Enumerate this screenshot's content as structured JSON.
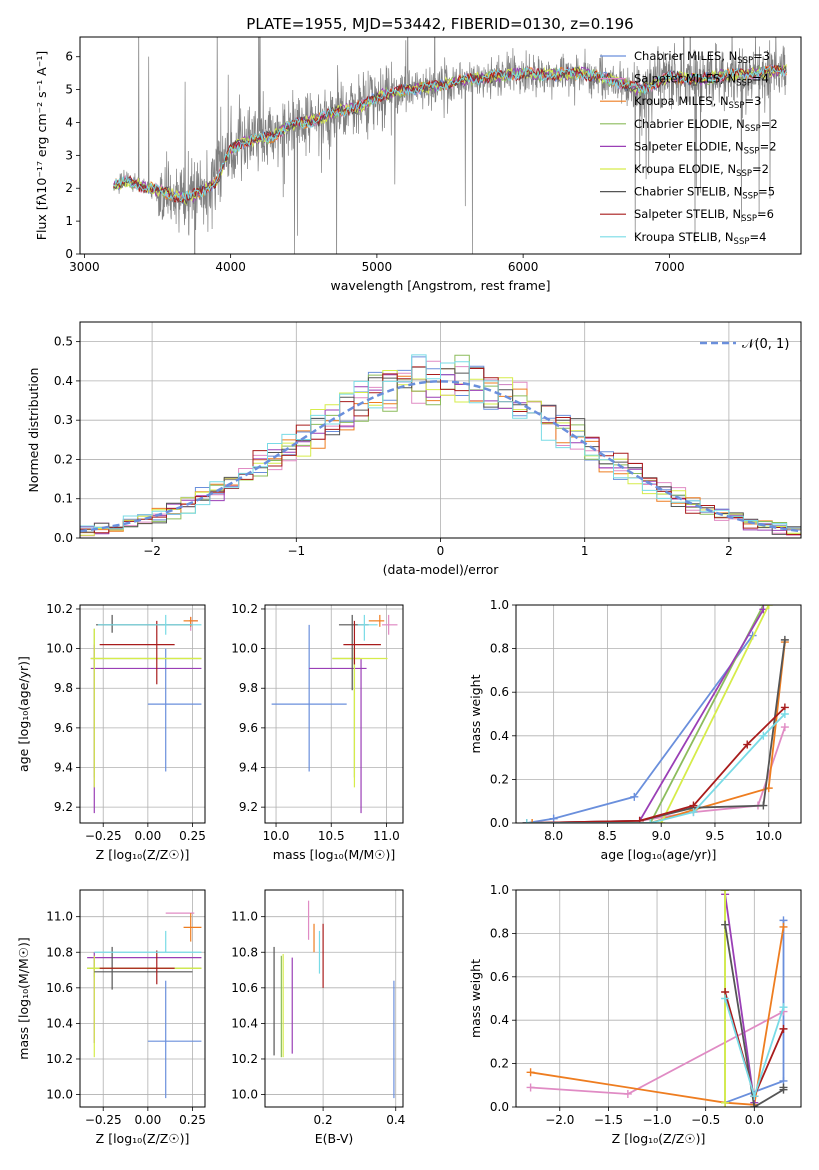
{
  "figure_title": "PLATE=1955, MJD=53442, FIBERID=0130, z=0.196",
  "colors": {
    "Chabrier MILES": "#6a8fdc",
    "Salpeter MILES": "#e08bc4",
    "Kroupa MILES": "#ee7d20",
    "Chabrier ELODIE": "#8cbc5c",
    "Salpeter ELODIE": "#9a3fb6",
    "Kroupa ELODIE": "#d6ec4a",
    "Chabrier STELIB": "#555555",
    "Salpeter STELIB": "#a81c1c",
    "Kroupa STELIB": "#78dbe6"
  },
  "chart_data": [
    {
      "id": "spectrum",
      "type": "line",
      "xlabel": "wavelength [Angstrom, rest frame]",
      "ylabel": "Flux [fλ10⁻¹⁷ erg cm⁻² s⁻¹ A⁻¹]",
      "xlim": [
        2970,
        7900
      ],
      "ylim": [
        0,
        6.6
      ],
      "xticks": [
        3000,
        4000,
        5000,
        6000,
        7000
      ],
      "yticks": [
        0,
        1,
        2,
        3,
        4,
        5,
        6
      ],
      "grid": false,
      "legend_position": "right",
      "data_color": "#808080",
      "continuum": {
        "x": [
          3200,
          3300,
          3400,
          3500,
          3600,
          3700,
          3800,
          3900,
          4000,
          4100,
          4200,
          4300,
          4400,
          4500,
          4600,
          4700,
          4800,
          4900,
          5000,
          5200,
          5400,
          5600,
          5800,
          6000,
          6200,
          6400,
          6600,
          6800,
          7000,
          7200,
          7400,
          7600,
          7800
        ],
        "y": [
          2.1,
          2.2,
          2.05,
          1.95,
          1.8,
          1.7,
          1.9,
          2.2,
          3.2,
          3.4,
          3.5,
          3.6,
          3.9,
          4.0,
          4.1,
          4.3,
          4.4,
          4.5,
          4.8,
          5.0,
          5.1,
          5.3,
          5.4,
          5.5,
          5.45,
          5.5,
          5.3,
          5.0,
          5.4,
          5.3,
          5.45,
          5.5,
          5.6
        ]
      },
      "legend": [
        {
          "name": "Chabrier MILES",
          "ssp": "3"
        },
        {
          "name": "Salpeter MILES",
          "ssp": "4"
        },
        {
          "name": "Kroupa MILES",
          "ssp": "3"
        },
        {
          "name": "Chabrier ELODIE",
          "ssp": "2"
        },
        {
          "name": "Salpeter ELODIE",
          "ssp": "2"
        },
        {
          "name": "Kroupa ELODIE",
          "ssp": "2"
        },
        {
          "name": "Chabrier STELIB",
          "ssp": "5"
        },
        {
          "name": "Salpeter STELIB",
          "ssp": "6"
        },
        {
          "name": "Kroupa STELIB",
          "ssp": "4"
        }
      ]
    },
    {
      "id": "residuals",
      "type": "histogram",
      "xlabel": "(data-model)/error",
      "ylabel": "Normed distribution",
      "xlim": [
        -2.5,
        2.5
      ],
      "ylim": [
        0,
        0.55
      ],
      "xticks": [
        -2,
        -1,
        0,
        1,
        2
      ],
      "yticks": [
        0,
        0.1,
        0.2,
        0.3,
        0.4,
        0.5
      ],
      "grid": true,
      "legend_position": "top-right",
      "gaussian_label": "𝒩(0, 1)",
      "bin_width": 0.1,
      "gaussian_color": "#6a8fdc"
    },
    {
      "id": "age_vs_Z",
      "type": "scatter",
      "xlabel": "Z [log₁₀(Z/Z☉)]",
      "ylabel": "age  [log₁₀(age/yr)]",
      "xlim": [
        -0.38,
        0.32
      ],
      "ylim": [
        9.12,
        10.22
      ],
      "xticks": [
        -0.25,
        0,
        0.25
      ],
      "xticklabels": [
        "−0.25",
        "0.00",
        "0.25"
      ],
      "yticks": [
        9.2,
        9.4,
        9.6,
        9.8,
        10.0,
        10.2
      ],
      "grid": true,
      "points": [
        {
          "name": "Chabrier MILES",
          "x": 0.1,
          "xerr_lo": 0.1,
          "xerr_hi": 0.2,
          "y": 9.72,
          "yerr_lo": 0.34,
          "yerr_hi": 0.28
        },
        {
          "name": "Salpeter MILES",
          "x": 0.24,
          "xerr_lo": 0.01,
          "xerr_hi": 0.04,
          "y": 10.14,
          "yerr_lo": 0.05,
          "yerr_hi": 0.02
        },
        {
          "name": "Kroupa MILES",
          "x": 0.24,
          "xerr_lo": 0.04,
          "xerr_hi": 0.04,
          "y": 10.14,
          "yerr_lo": 0.03,
          "yerr_hi": 0.02
        },
        {
          "name": "Chabrier ELODIE",
          "x": -0.3,
          "xerr_lo": 0.02,
          "xerr_hi": 0.6,
          "y": 9.95,
          "yerr_lo": 0.6,
          "yerr_hi": 0.15
        },
        {
          "name": "Salpeter ELODIE",
          "x": -0.3,
          "xerr_lo": 0.02,
          "xerr_hi": 0.6,
          "y": 9.9,
          "yerr_lo": 0.73,
          "yerr_hi": 0.12
        },
        {
          "name": "Kroupa ELODIE",
          "x": -0.3,
          "xerr_lo": 0.02,
          "xerr_hi": 0.6,
          "y": 9.95,
          "yerr_lo": 0.65,
          "yerr_hi": 0.15
        },
        {
          "name": "Chabrier STELIB",
          "x": -0.2,
          "xerr_lo": 0.09,
          "xerr_hi": 0.45,
          "y": 10.12,
          "yerr_lo": 0.04,
          "yerr_hi": 0.05
        },
        {
          "name": "Salpeter STELIB",
          "x": 0.05,
          "xerr_lo": 0.32,
          "xerr_hi": 0.1,
          "y": 10.02,
          "yerr_lo": 0.2,
          "yerr_hi": 0.12
        },
        {
          "name": "Kroupa STELIB",
          "x": 0.1,
          "xerr_lo": 0.38,
          "xerr_hi": 0.2,
          "y": 10.12,
          "yerr_lo": 0.05,
          "yerr_hi": 0.05
        }
      ]
    },
    {
      "id": "age_vs_mass",
      "type": "scatter",
      "xlabel": "mass [log₁₀(M/M☉)]",
      "ylabel": "",
      "xlim": [
        9.9,
        11.15
      ],
      "ylim": [
        9.12,
        10.22
      ],
      "xticks": [
        10.0,
        10.5,
        11.0
      ],
      "yticks": [
        9.2,
        9.4,
        9.6,
        9.8,
        10.0,
        10.2
      ],
      "grid": true,
      "points": [
        {
          "name": "Chabrier MILES",
          "x": 10.3,
          "xerr_lo": 0.34,
          "xerr_hi": 0.34,
          "y": 9.72,
          "yerr_lo": 0.34,
          "yerr_hi": 0.4
        },
        {
          "name": "Salpeter MILES",
          "x": 11.02,
          "xerr_lo": 0.06,
          "xerr_hi": 0.08,
          "y": 10.12,
          "yerr_lo": 0.05,
          "yerr_hi": 0.05
        },
        {
          "name": "Kroupa MILES",
          "x": 10.94,
          "xerr_lo": 0.1,
          "xerr_hi": 0.04,
          "y": 10.14,
          "yerr_lo": 0.03,
          "yerr_hi": 0.03
        },
        {
          "name": "Chabrier ELODIE",
          "x": 10.71,
          "xerr_lo": 0.2,
          "xerr_hi": 0.05,
          "y": 9.95,
          "yerr_lo": 0.6,
          "yerr_hi": 0.05
        },
        {
          "name": "Salpeter ELODIE",
          "x": 10.77,
          "xerr_lo": 0.47,
          "xerr_hi": 0.05,
          "y": 9.9,
          "yerr_lo": 0.73,
          "yerr_hi": 0.05
        },
        {
          "name": "Kroupa ELODIE",
          "x": 10.71,
          "xerr_lo": 0.2,
          "xerr_hi": 0.3,
          "y": 9.95,
          "yerr_lo": 0.65,
          "yerr_hi": 0.05
        },
        {
          "name": "Chabrier STELIB",
          "x": 10.69,
          "xerr_lo": 0.12,
          "xerr_hi": 0.15,
          "y": 10.12,
          "yerr_lo": 0.33,
          "yerr_hi": 0.05
        },
        {
          "name": "Salpeter STELIB",
          "x": 10.71,
          "xerr_lo": 0.1,
          "xerr_hi": 0.24,
          "y": 10.02,
          "yerr_lo": 0.1,
          "yerr_hi": 0.12
        },
        {
          "name": "Kroupa STELIB",
          "x": 10.8,
          "xerr_lo": 0.06,
          "xerr_hi": 0.12,
          "y": 10.12,
          "yerr_lo": 0.08,
          "yerr_hi": 0.05
        }
      ]
    },
    {
      "id": "massweight_vs_age",
      "type": "line",
      "xlabel": "age  [log₁₀(age/yr)]",
      "ylabel": "mass weight",
      "xlim": [
        7.65,
        10.3
      ],
      "ylim": [
        0,
        1.0
      ],
      "xticks": [
        8.0,
        8.5,
        9.0,
        9.5,
        10.0
      ],
      "yticks": [
        0,
        0.2,
        0.4,
        0.6,
        0.8,
        1.0
      ],
      "grid": true,
      "series": [
        {
          "name": "Chabrier MILES",
          "x": [
            7.75,
            8.0,
            8.75,
            9.85
          ],
          "y": [
            0.0,
            0.02,
            0.12,
            0.86
          ]
        },
        {
          "name": "Salpeter MILES",
          "x": [
            7.75,
            8.8,
            9.3,
            9.9,
            10.15
          ],
          "y": [
            0.0,
            0.01,
            0.05,
            0.08,
            0.44
          ]
        },
        {
          "name": "Kroupa MILES",
          "x": [
            7.8,
            8.9,
            9.3,
            10.0,
            10.15
          ],
          "y": [
            0.0,
            0.0,
            0.06,
            0.16,
            0.83
          ]
        },
        {
          "name": "Chabrier ELODIE",
          "x": [
            8.9,
            9.95
          ],
          "y": [
            0.0,
            1.0
          ]
        },
        {
          "name": "Salpeter ELODIE",
          "x": [
            8.8,
            9.95
          ],
          "y": [
            0.01,
            0.98
          ]
        },
        {
          "name": "Kroupa ELODIE",
          "x": [
            9.0,
            10.0
          ],
          "y": [
            0.0,
            1.0
          ]
        },
        {
          "name": "Chabrier STELIB",
          "x": [
            7.75,
            8.8,
            9.3,
            9.95,
            10.15
          ],
          "y": [
            0.0,
            0.01,
            0.07,
            0.08,
            0.84
          ]
        },
        {
          "name": "Salpeter STELIB",
          "x": [
            7.75,
            8.8,
            9.3,
            9.8,
            10.15
          ],
          "y": [
            0.0,
            0.01,
            0.08,
            0.36,
            0.53
          ]
        },
        {
          "name": "Kroupa STELIB",
          "x": [
            7.75,
            8.9,
            9.3,
            9.95,
            10.15
          ],
          "y": [
            0.0,
            0.0,
            0.05,
            0.4,
            0.5
          ]
        }
      ]
    },
    {
      "id": "mass_vs_Z",
      "type": "scatter",
      "xlabel": "Z [log₁₀(Z/Z☉)]",
      "ylabel": "mass [log₁₀(M/M☉)]",
      "xlim": [
        -0.38,
        0.32
      ],
      "ylim": [
        9.93,
        11.15
      ],
      "xticks": [
        -0.25,
        0,
        0.25
      ],
      "xticklabels": [
        "−0.25",
        "0.00",
        "0.25"
      ],
      "yticks": [
        10.0,
        10.2,
        10.4,
        10.6,
        10.8,
        11.0
      ],
      "grid": true,
      "points": [
        {
          "name": "Chabrier MILES",
          "x": 0.1,
          "xerr_lo": 0.1,
          "xerr_hi": 0.2,
          "y": 10.3,
          "yerr_lo": 0.32,
          "yerr_hi": 0.34
        },
        {
          "name": "Salpeter MILES",
          "x": 0.2,
          "xerr_lo": 0.1,
          "xerr_hi": 0.06,
          "y": 11.02,
          "yerr_lo": 0.0,
          "yerr_hi": 0.0
        },
        {
          "name": "Kroupa MILES",
          "x": 0.24,
          "xerr_lo": 0.04,
          "xerr_hi": 0.06,
          "y": 10.94,
          "yerr_lo": 0.08,
          "yerr_hi": 0.08
        },
        {
          "name": "Chabrier ELODIE",
          "x": -0.3,
          "xerr_lo": 0.04,
          "xerr_hi": 0.6,
          "y": 10.71,
          "yerr_lo": 0.05,
          "yerr_hi": 0.05
        },
        {
          "name": "Salpeter ELODIE",
          "x": -0.3,
          "xerr_lo": 0.04,
          "xerr_hi": 0.6,
          "y": 10.77,
          "yerr_lo": 0.48,
          "yerr_hi": 0.03
        },
        {
          "name": "Kroupa ELODIE",
          "x": -0.3,
          "xerr_lo": 0.04,
          "xerr_hi": 0.6,
          "y": 10.71,
          "yerr_lo": 0.5,
          "yerr_hi": 0.07
        },
        {
          "name": "Chabrier STELIB",
          "x": -0.2,
          "xerr_lo": 0.1,
          "xerr_hi": 0.45,
          "y": 10.69,
          "yerr_lo": 0.1,
          "yerr_hi": 0.14
        },
        {
          "name": "Salpeter STELIB",
          "x": 0.05,
          "xerr_lo": 0.32,
          "xerr_hi": 0.1,
          "y": 10.71,
          "yerr_lo": 0.09,
          "yerr_hi": 0.1
        },
        {
          "name": "Kroupa STELIB",
          "x": 0.1,
          "xerr_lo": 0.4,
          "xerr_hi": 0.2,
          "y": 10.8,
          "yerr_lo": 0.0,
          "yerr_hi": 0.12
        }
      ]
    },
    {
      "id": "mass_vs_ebv",
      "type": "scatter",
      "xlabel": "E(B-V)",
      "ylabel": "",
      "xlim": [
        0.04,
        0.42
      ],
      "ylim": [
        9.93,
        11.15
      ],
      "xticks": [
        0.2,
        0.4
      ],
      "yticks": [
        10.0,
        10.2,
        10.4,
        10.6,
        10.8,
        11.0
      ],
      "grid": true,
      "points": [
        {
          "name": "Chabrier MILES",
          "x": 0.395,
          "y": 10.3,
          "yerr_lo": 0.32,
          "yerr_hi": 0.34
        },
        {
          "name": "Salpeter MILES",
          "x": 0.16,
          "y": 10.95,
          "yerr_lo": 0.08,
          "yerr_hi": 0.14
        },
        {
          "name": "Kroupa MILES",
          "x": 0.175,
          "y": 10.9,
          "yerr_lo": 0.1,
          "yerr_hi": 0.06
        },
        {
          "name": "Chabrier ELODIE",
          "x": 0.085,
          "y": 10.5,
          "yerr_lo": 0.29,
          "yerr_hi": 0.28
        },
        {
          "name": "Salpeter ELODIE",
          "x": 0.115,
          "y": 10.51,
          "yerr_lo": 0.28,
          "yerr_hi": 0.26
        },
        {
          "name": "Kroupa ELODIE",
          "x": 0.09,
          "y": 10.49,
          "yerr_lo": 0.28,
          "yerr_hi": 0.3
        },
        {
          "name": "Chabrier STELIB",
          "x": 0.065,
          "y": 10.48,
          "yerr_lo": 0.26,
          "yerr_hi": 0.35
        },
        {
          "name": "Salpeter STELIB",
          "x": 0.2,
          "y": 10.78,
          "yerr_lo": 0.18,
          "yerr_hi": 0.18
        },
        {
          "name": "Kroupa STELIB",
          "x": 0.19,
          "y": 10.8,
          "yerr_lo": 0.12,
          "yerr_hi": 0.12
        }
      ]
    },
    {
      "id": "massweight_vs_Z",
      "type": "line",
      "xlabel": "Z [log₁₀(Z/Z☉)]",
      "ylabel": "mass weight",
      "xlim": [
        -2.45,
        0.48
      ],
      "ylim": [
        0,
        1.0
      ],
      "xticks": [
        -2.0,
        -1.5,
        -1.0,
        -0.5,
        0.0
      ],
      "xticklabels": [
        "−2.0",
        "−1.5",
        "−1.0",
        "−0.5",
        "0.0"
      ],
      "yticks": [
        0,
        0.2,
        0.4,
        0.6,
        0.8,
        1.0
      ],
      "grid": true,
      "series": [
        {
          "name": "Chabrier MILES",
          "x": [
            -0.3,
            0.3,
            0.3
          ],
          "y": [
            0.02,
            0.12,
            0.86
          ]
        },
        {
          "name": "Salpeter MILES",
          "x": [
            -2.3,
            -1.3,
            0.3
          ],
          "y": [
            0.09,
            0.06,
            0.44
          ]
        },
        {
          "name": "Kroupa MILES",
          "x": [
            -2.3,
            -0.3,
            0.0,
            0.3
          ],
          "y": [
            0.16,
            0.02,
            0.01,
            0.83
          ]
        },
        {
          "name": "Chabrier ELODIE",
          "x": [
            -0.3,
            -0.3
          ],
          "y": [
            0.02,
            1.0
          ]
        },
        {
          "name": "Salpeter ELODIE",
          "x": [
            -0.3,
            0.0
          ],
          "y": [
            0.98,
            0.02
          ]
        },
        {
          "name": "Kroupa ELODIE",
          "x": [
            -0.3,
            -0.3
          ],
          "y": [
            0.02,
            1.0
          ]
        },
        {
          "name": "Chabrier STELIB",
          "x": [
            -0.3,
            0.0,
            0.3,
            0.3
          ],
          "y": [
            0.84,
            0.0,
            0.08,
            0.09
          ]
        },
        {
          "name": "Salpeter STELIB",
          "x": [
            -0.3,
            0.0,
            0.3
          ],
          "y": [
            0.53,
            0.05,
            0.36
          ]
        },
        {
          "name": "Kroupa STELIB",
          "x": [
            -0.3,
            0.0,
            0.3
          ],
          "y": [
            0.5,
            0.05,
            0.46
          ]
        }
      ]
    }
  ]
}
